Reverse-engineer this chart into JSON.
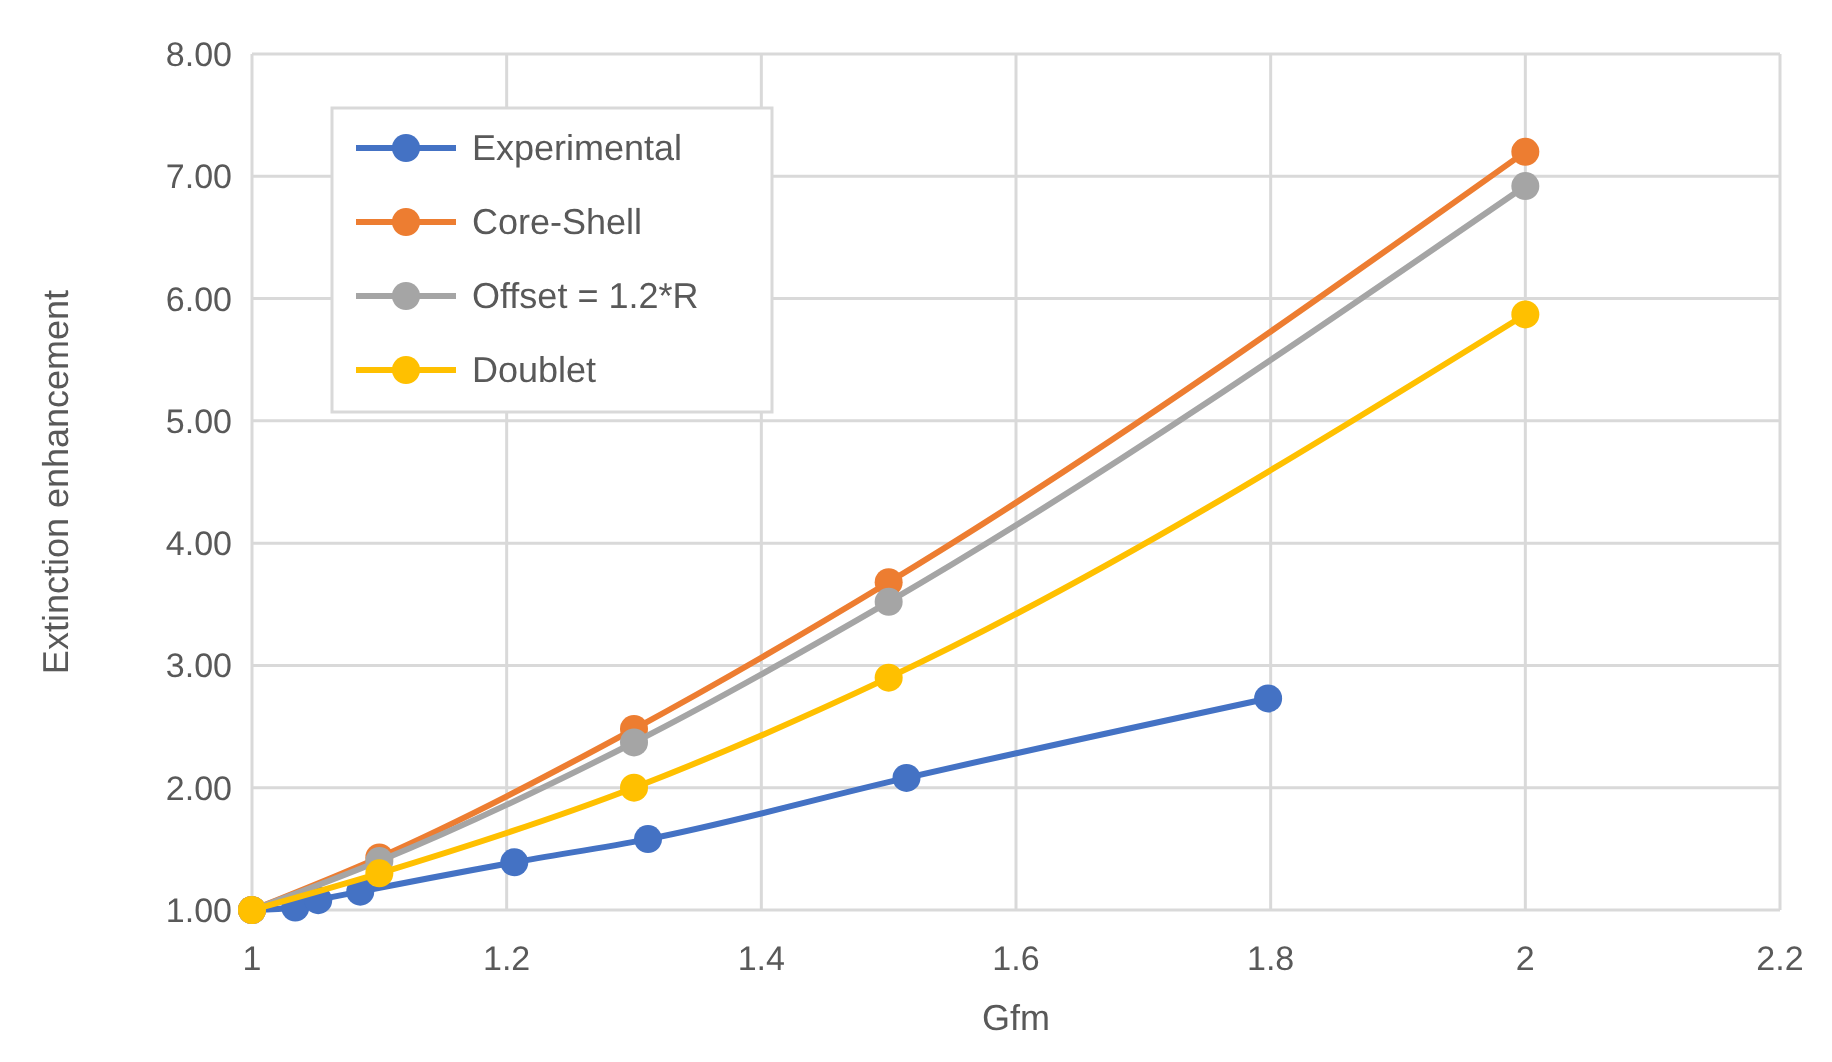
{
  "chart_data": {
    "type": "line",
    "xlabel": "Gfm",
    "ylabel": "Extinction enhancement",
    "xlim": [
      1,
      2.2
    ],
    "xticks": [
      1,
      1.2,
      1.4,
      1.6,
      1.8,
      2,
      2.2
    ],
    "ylim": [
      1,
      8
    ],
    "yticks": [
      {
        "value": 1,
        "label": "1.00"
      },
      {
        "value": 2,
        "label": "2.00"
      },
      {
        "value": 3,
        "label": "3.00"
      },
      {
        "value": 4,
        "label": "4.00"
      },
      {
        "value": 5,
        "label": "5.00"
      },
      {
        "value": 6,
        "label": "6.00"
      },
      {
        "value": 7,
        "label": "7.00"
      },
      {
        "value": 8,
        "label": "8.00"
      }
    ],
    "grid": true,
    "legend": "top left",
    "marker": "circle",
    "line_style": "solid",
    "series": [
      {
        "name": "Experimental",
        "color": "#4472c4",
        "x": [
          1,
          1.034,
          1.052,
          1.085,
          1.206,
          1.311,
          1.514,
          1.798
        ],
        "values": [
          1,
          1.02,
          1.08,
          1.15,
          1.39,
          1.58,
          2.08,
          2.73
        ]
      },
      {
        "name": "Core-Shell",
        "color": "#ed7d31",
        "x": [
          1,
          1.1,
          1.3,
          1.5,
          2
        ],
        "values": [
          1,
          1.43,
          2.48,
          3.68,
          7.2
        ]
      },
      {
        "name": "Offset = 1.2*R",
        "color": "#a5a5a5",
        "x": [
          1,
          1.1,
          1.3,
          1.5,
          2
        ],
        "values": [
          1,
          1.4,
          2.37,
          3.52,
          6.92
        ]
      },
      {
        "name": "Doublet",
        "color": "#ffc000",
        "x": [
          1,
          1.1,
          1.3,
          1.5,
          2
        ],
        "values": [
          1,
          1.3,
          2,
          2.9,
          5.87
        ]
      }
    ]
  }
}
